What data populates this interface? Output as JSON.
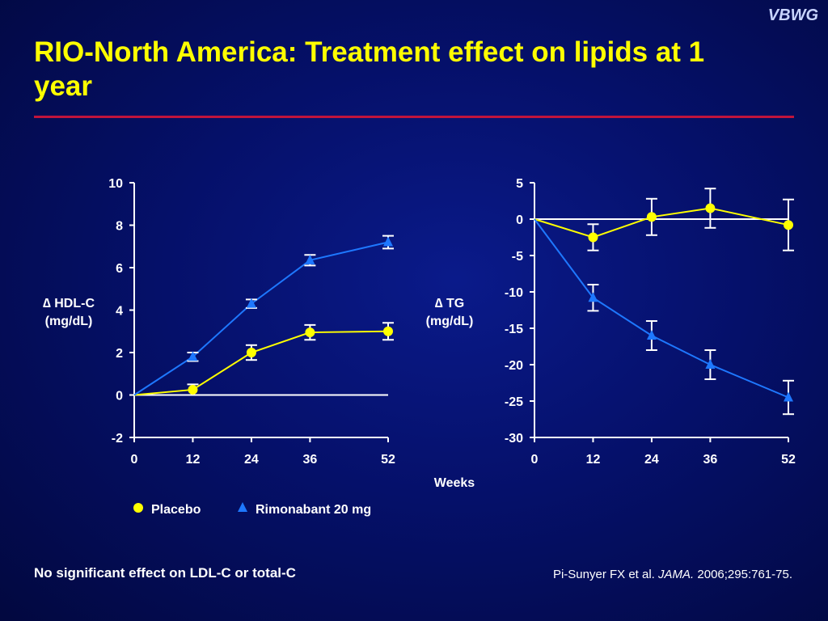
{
  "brand": "VBWG",
  "title": "RIO-North America: Treatment effect on lipids at 1 year",
  "footnote": "No significant effect on LDL-C or total-C",
  "citation": {
    "authors": "Pi-Sunyer FX et al. ",
    "journal": "JAMA.",
    "details": " 2006;295:761-75."
  },
  "legend": {
    "placebo": "Placebo",
    "rimonabant": "Rimonabant 20 mg"
  },
  "x_axis_label": "Weeks",
  "colors": {
    "placebo": "#ffff00",
    "rimonabant": "#1e78ff",
    "axis": "#ffffff",
    "rule": "#c0143c",
    "title": "#ffff00"
  },
  "chart_data": [
    {
      "type": "line",
      "ylabel": [
        "∆ HDL-C",
        "(mg/dL)"
      ],
      "xlabel": "Weeks",
      "x": [
        0,
        12,
        24,
        36,
        52
      ],
      "xlim": [
        0,
        52
      ],
      "ylim": [
        -2,
        10
      ],
      "yticks": [
        10,
        8,
        6,
        4,
        2,
        0,
        -2
      ],
      "series": [
        {
          "name": "Placebo",
          "values": [
            0,
            0.25,
            2.0,
            2.95,
            3.0
          ],
          "error": [
            0,
            0.25,
            0.35,
            0.35,
            0.4
          ]
        },
        {
          "name": "Rimonabant 20 mg",
          "values": [
            0,
            1.8,
            4.3,
            6.35,
            7.2
          ],
          "error": [
            0,
            0.2,
            0.2,
            0.25,
            0.3
          ]
        }
      ]
    },
    {
      "type": "line",
      "ylabel": [
        "∆ TG",
        "(mg/dL)"
      ],
      "xlabel": "Weeks",
      "x": [
        0,
        12,
        24,
        36,
        52
      ],
      "xlim": [
        0,
        52
      ],
      "ylim": [
        -30,
        5
      ],
      "yticks": [
        5,
        0,
        -5,
        -10,
        -15,
        -20,
        -25,
        -30
      ],
      "series": [
        {
          "name": "Placebo",
          "values": [
            0,
            -2.5,
            0.3,
            1.5,
            -0.8
          ],
          "error": [
            0,
            1.8,
            2.5,
            2.7,
            3.5
          ]
        },
        {
          "name": "Rimonabant 20 mg",
          "values": [
            0,
            -10.8,
            -16.0,
            -20.0,
            -24.5
          ],
          "error": [
            0,
            1.8,
            2.0,
            2.0,
            2.3
          ]
        }
      ]
    }
  ]
}
